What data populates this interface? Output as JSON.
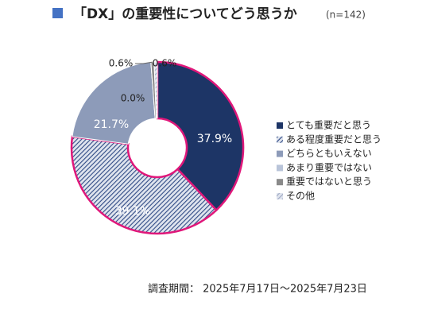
{
  "chart_data": {
    "type": "pie",
    "title": "「DX」の重要性についてどう思うか",
    "subtitle": "(n=142)",
    "categories": [
      "とても重要だと思う",
      "ある程度重要だと思う",
      "どちらともいえない",
      "あまり重要ではない",
      "重要ではないと思う",
      "その他"
    ],
    "values": [
      37.9,
      39.1,
      21.7,
      0.0,
      0.6,
      0.6
    ],
    "value_labels": [
      "37.9%",
      "39.1%",
      "21.7%",
      "0.0%",
      "0.6%",
      "0.6%"
    ],
    "colors": [
      "#1d3566",
      "#2f4a85",
      "#8d9bb9",
      "#b9c4d9",
      "#8a8a8a",
      "#a0aac4"
    ],
    "hatched": [
      false,
      true,
      false,
      false,
      false,
      true
    ],
    "annotation": "調査期間： 2025年7月17日～2025年7月23日"
  }
}
